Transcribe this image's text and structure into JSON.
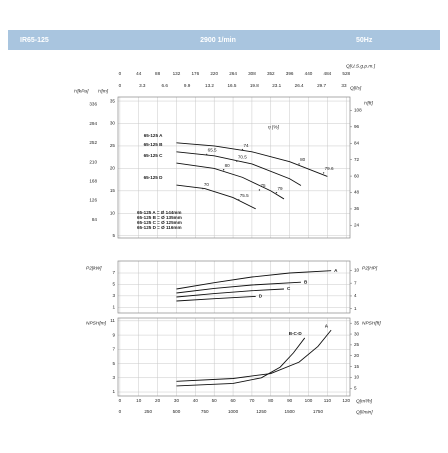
{
  "header": {
    "title": "IR65-125",
    "speed": "2900 1/min",
    "frequency": "50Hz"
  },
  "chart_data": [
    {
      "type": "line",
      "ylabel": "H[m]",
      "y3label": "H[kPa]",
      "y2label": "H[ft]",
      "x2label": "Q[U.S.g.p.m.]",
      "x3label": "Q[l/s]",
      "xlim": [
        -1,
        122
      ],
      "x2lim": [
        -4.4,
        536.8
      ],
      "x2ticks": [
        0,
        44,
        88,
        132,
        176,
        220,
        264,
        308,
        352,
        396,
        440,
        484,
        528
      ],
      "x3lim": [
        -0.278,
        33.889
      ],
      "x3ticks": [
        0,
        3.3,
        6.6,
        9.9,
        13.2,
        16.5,
        19.8,
        23.1,
        26.4,
        29.7,
        33
      ],
      "ylim": [
        4.5,
        35.9
      ],
      "yticks": [
        5,
        10,
        15,
        20,
        25,
        30,
        35
      ],
      "y3lim": [
        44.1,
        352.1
      ],
      "y3ticks": [
        84,
        126,
        168,
        210,
        252,
        294,
        336
      ],
      "y2lim": [
        14.76,
        117.8
      ],
      "y2ticks": [
        24,
        36,
        48,
        60,
        72,
        84,
        96,
        108
      ],
      "grid": true,
      "series": [
        {
          "name": "65-125 A",
          "color": "#111111",
          "x": [
            30,
            50,
            70,
            90,
            110
          ],
          "values": [
            25.7,
            25.0,
            23.7,
            21.5,
            18.2
          ]
        },
        {
          "name": "65-125 B",
          "color": "#111111",
          "x": [
            30,
            50,
            70,
            90,
            96
          ],
          "values": [
            23.7,
            22.8,
            21.0,
            17.7,
            16.2
          ]
        },
        {
          "name": "65-125 C",
          "color": "#111111",
          "x": [
            30,
            50,
            65,
            80,
            87
          ],
          "values": [
            21.2,
            20.0,
            18.0,
            15.0,
            13.2
          ]
        },
        {
          "name": "65-125 D",
          "color": "#111111",
          "x": [
            30,
            45,
            60,
            72
          ],
          "values": [
            16.3,
            15.5,
            13.5,
            11.0
          ]
        }
      ],
      "efficiency": {
        "label": "η [%]",
        "x": [
          46,
          65,
          95,
          108,
          62,
          55,
          83,
          74,
          44,
          63
        ],
        "y": [
          23.1,
          24.2,
          21.0,
          19.0,
          21.6,
          19.7,
          14.6,
          15.2,
          15.5,
          13.0
        ],
        "values": [
          65.5,
          74,
          80,
          79.6,
          70.5,
          80,
          79,
          75,
          70,
          75.5
        ]
      },
      "diameters": [
        "65-125 A = Ø 144mm",
        "65-125 B = Ø 135mm",
        "65-125 C = Ø 125mm",
        "65-125 D = Ø 116mm"
      ]
    },
    {
      "type": "line",
      "ylabel": "P2[kW]",
      "y2label": "P2[HP]",
      "xlim": [
        -1,
        122
      ],
      "ylim": [
        0,
        9.1
      ],
      "yticks": [
        1,
        3,
        5,
        7
      ],
      "y2lim": [
        0,
        12.2
      ],
      "y2ticks": [
        1,
        4,
        7,
        10
      ],
      "grid": true,
      "series": [
        {
          "name": "A",
          "color": "#111111",
          "x": [
            30,
            50,
            70,
            90,
            112
          ],
          "values": [
            4.2,
            5.3,
            6.3,
            7.0,
            7.4
          ]
        },
        {
          "name": "B",
          "color": "#111111",
          "x": [
            30,
            50,
            70,
            96
          ],
          "values": [
            3.5,
            4.3,
            4.9,
            5.4
          ]
        },
        {
          "name": "C",
          "color": "#111111",
          "x": [
            30,
            50,
            70,
            87
          ],
          "values": [
            2.8,
            3.4,
            3.9,
            4.2
          ]
        },
        {
          "name": "D",
          "color": "#111111",
          "x": [
            30,
            50,
            72
          ],
          "values": [
            2.1,
            2.5,
            2.9
          ]
        }
      ]
    },
    {
      "type": "line",
      "ylabel": "NPSH[m]",
      "y2label": "NPSH[ft]",
      "xlabel": "Q[m³/h]",
      "x2label": "Q[l/min]",
      "xlim": [
        -1,
        122
      ],
      "xticks": [
        0,
        10,
        20,
        30,
        40,
        50,
        60,
        70,
        80,
        90,
        100,
        110,
        120
      ],
      "x2lim": [
        -16.67,
        2033.3
      ],
      "x2ticks": [
        0,
        250,
        500,
        750,
        1000,
        1250,
        1500,
        1750
      ],
      "ylim": [
        0.44,
        11.4
      ],
      "yticks": [
        1,
        3,
        5,
        7,
        9,
        11
      ],
      "y2lim": [
        1.44,
        37.4
      ],
      "y2ticks": [
        5,
        10,
        15,
        20,
        25,
        30,
        35
      ],
      "grid": true,
      "series": [
        {
          "name": "A",
          "color": "#111111",
          "x": [
            30,
            60,
            80,
            95,
            105,
            112
          ],
          "values": [
            2.5,
            2.9,
            3.6,
            5.2,
            7.4,
            9.7
          ]
        },
        {
          "name": "B-C-D",
          "color": "#111111",
          "x": [
            30,
            60,
            75,
            85,
            92,
            98
          ],
          "values": [
            1.85,
            2.2,
            3.0,
            4.5,
            6.5,
            8.6
          ]
        }
      ]
    }
  ]
}
